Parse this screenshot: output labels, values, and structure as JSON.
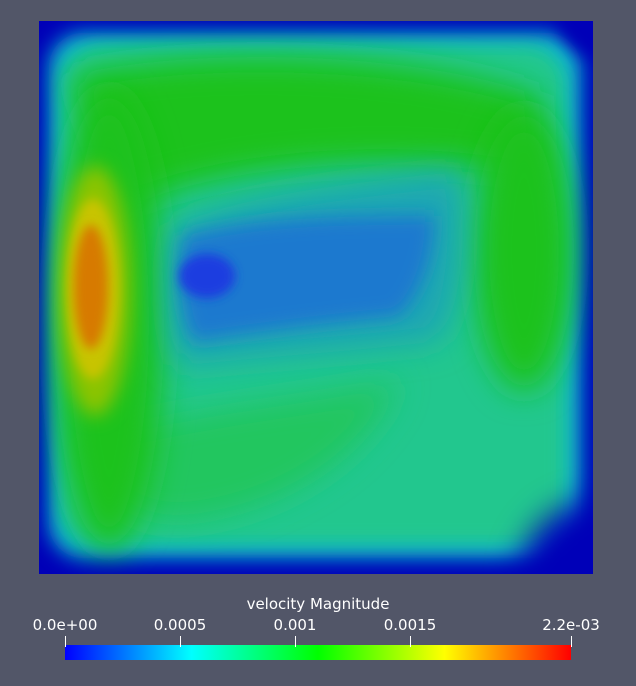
{
  "colorbar": {
    "title": "velocity Magnitude",
    "min": 0.0,
    "max": 0.0022,
    "ticks": [
      {
        "label": "0.0e+00",
        "value": 0.0
      },
      {
        "label": "0.0005",
        "value": 0.0005
      },
      {
        "label": "0.001",
        "value": 0.001
      },
      {
        "label": "0.0015",
        "value": 0.0015
      },
      {
        "label": "2.2e-03",
        "value": 0.0022
      }
    ],
    "stops": [
      {
        "t": 0.0,
        "color": "#0000ff"
      },
      {
        "t": 0.25,
        "color": "#00ffff"
      },
      {
        "t": 0.5,
        "color": "#00ff00"
      },
      {
        "t": 0.75,
        "color": "#ffff00"
      },
      {
        "t": 1.0,
        "color": "#ff0000"
      }
    ]
  },
  "colors": {
    "background": "#525668",
    "edge": "#0000b8",
    "field_green": "#1fc21f",
    "field_teal": "#22c78e",
    "vortex_blue": "#1a5fd9",
    "hot_orange": "#d77a00",
    "hot_yellow": "#c8c400"
  }
}
